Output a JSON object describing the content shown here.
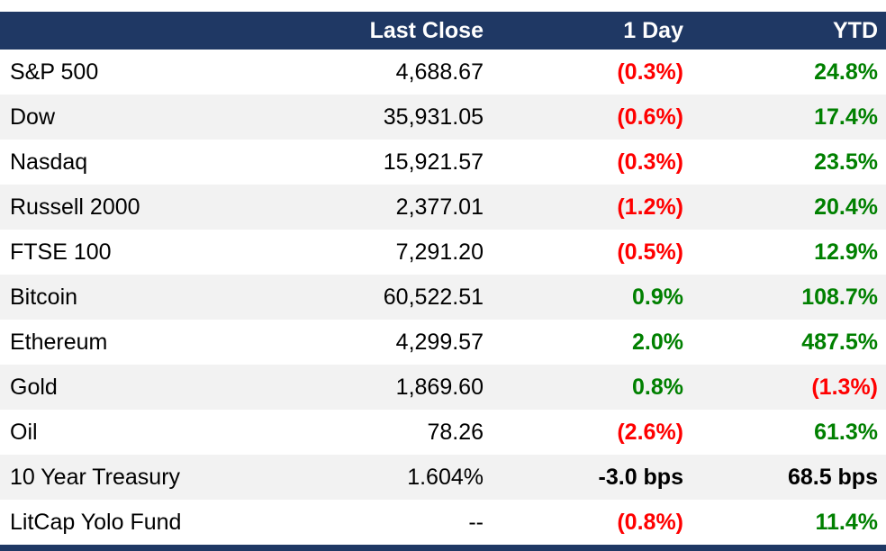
{
  "colors": {
    "navy": "#1F3864",
    "red": "#FF0000",
    "green": "#008000",
    "row_alt": "#F2F2F2",
    "text": "#000000",
    "header_text": "#FFFFFF"
  },
  "chart_data": {
    "type": "table",
    "columns": [
      "",
      "Last Close",
      "1 Day",
      "YTD"
    ],
    "rows": [
      {
        "name": "S&P 500",
        "last_close": "4,688.67",
        "one_day": "(0.3%)",
        "one_day_dir": "down",
        "ytd": "24.8%",
        "ytd_dir": "up"
      },
      {
        "name": "Dow",
        "last_close": "35,931.05",
        "one_day": "(0.6%)",
        "one_day_dir": "down",
        "ytd": "17.4%",
        "ytd_dir": "up"
      },
      {
        "name": "Nasdaq",
        "last_close": "15,921.57",
        "one_day": "(0.3%)",
        "one_day_dir": "down",
        "ytd": "23.5%",
        "ytd_dir": "up"
      },
      {
        "name": "Russell 2000",
        "last_close": "2,377.01",
        "one_day": "(1.2%)",
        "one_day_dir": "down",
        "ytd": "20.4%",
        "ytd_dir": "up"
      },
      {
        "name": "FTSE 100",
        "last_close": "7,291.20",
        "one_day": "(0.5%)",
        "one_day_dir": "down",
        "ytd": "12.9%",
        "ytd_dir": "up"
      },
      {
        "name": "Bitcoin",
        "last_close": "60,522.51",
        "one_day": "0.9%",
        "one_day_dir": "up",
        "ytd": "108.7%",
        "ytd_dir": "up"
      },
      {
        "name": "Ethereum",
        "last_close": "4,299.57",
        "one_day": "2.0%",
        "one_day_dir": "up",
        "ytd": "487.5%",
        "ytd_dir": "up"
      },
      {
        "name": "Gold",
        "last_close": "1,869.60",
        "one_day": "0.8%",
        "one_day_dir": "up",
        "ytd": "(1.3%)",
        "ytd_dir": "down"
      },
      {
        "name": "Oil",
        "last_close": "78.26",
        "one_day": "(2.6%)",
        "one_day_dir": "down",
        "ytd": "61.3%",
        "ytd_dir": "up"
      },
      {
        "name": "10 Year Treasury",
        "last_close": "1.604%",
        "one_day": "-3.0 bps",
        "one_day_dir": "neutral",
        "ytd": "68.5 bps",
        "ytd_dir": "neutral"
      },
      {
        "name": "LitCap Yolo Fund",
        "last_close": "--",
        "one_day": "(0.8%)",
        "one_day_dir": "down",
        "ytd": "11.4%",
        "ytd_dir": "up"
      }
    ]
  }
}
